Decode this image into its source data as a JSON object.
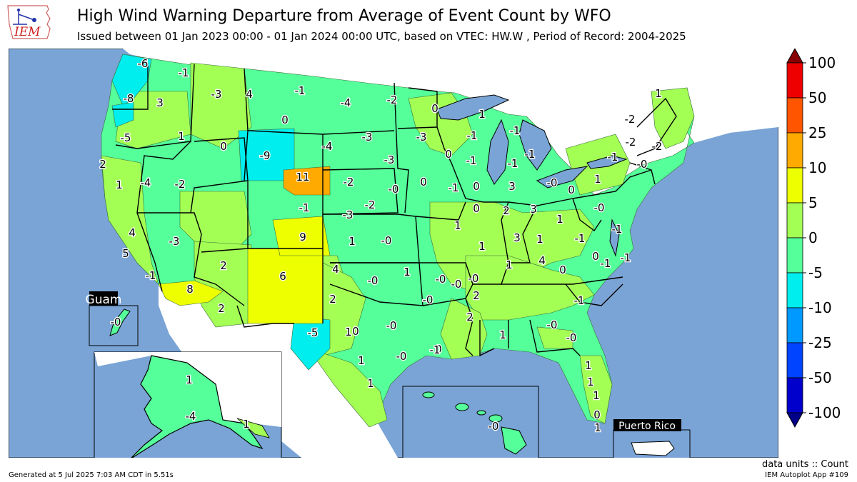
{
  "title": "High Wind Warning Departure from Average of Event Count by WFO",
  "subtitle": "Issued between 01 Jan 2023 00:00 - 01 Jan 2024 00:00 UTC, based on VTEC: HW.W  , Period of Record: 2004-2025",
  "logo_text": "IEM",
  "units": "data units :: Count",
  "generated": "Generated at 5 Jul 2025 7:03 AM CDT in 5.51s",
  "app": "IEM Autoplot App #109",
  "colors": {
    "ocean": "#7aa4d6",
    "missing": "#ffffff",
    "boundary": "#000000"
  },
  "legend": {
    "ticks": [
      "100",
      "50",
      "25",
      "10",
      "5",
      "0",
      "-5",
      "-10",
      "-25",
      "-50",
      "-100"
    ],
    "bins": [
      {
        "range": "50 to 100",
        "color": "#ee0000"
      },
      {
        "range": "25 to 50",
        "color": "#ff5500"
      },
      {
        "range": "10 to 25",
        "color": "#ffaa00"
      },
      {
        "range": "5 to 10",
        "color": "#eeff00"
      },
      {
        "range": "0 to 5",
        "color": "#a4ff55"
      },
      {
        "range": "-5 to 0",
        "color": "#55ff99"
      },
      {
        "range": "-10 to -5",
        "color": "#00eeee"
      },
      {
        "range": "-25 to -10",
        "color": "#0099ff"
      },
      {
        "range": "-50 to -25",
        "color": "#0044ff"
      },
      {
        "range": "-100 to -50",
        "color": "#0000cc"
      }
    ],
    "over_color": "#880000",
    "under_color": "#000088"
  },
  "insets": {
    "guam": "Guam",
    "puerto_rico": "Puerto Rico"
  },
  "wfo_values": [
    {
      "v": "-6"
    },
    {
      "v": "-1"
    },
    {
      "v": "-8"
    },
    {
      "v": "3"
    },
    {
      "v": "-3"
    },
    {
      "v": "4"
    },
    {
      "v": "-1"
    },
    {
      "v": "-4"
    },
    {
      "v": "-2"
    },
    {
      "v": "0"
    },
    {
      "v": "0"
    },
    {
      "v": "-5"
    },
    {
      "v": "1"
    },
    {
      "v": "0"
    },
    {
      "v": "-9"
    },
    {
      "v": "-4"
    },
    {
      "v": "-3"
    },
    {
      "v": "1"
    },
    {
      "v": "-1"
    },
    {
      "v": "-1"
    },
    {
      "v": "0"
    },
    {
      "v": "2"
    },
    {
      "v": "-4"
    },
    {
      "v": "-2"
    },
    {
      "v": "11"
    },
    {
      "v": "-3"
    },
    {
      "v": "-3"
    },
    {
      "v": "-1"
    },
    {
      "v": "1"
    },
    {
      "v": "-1"
    },
    {
      "v": "-1"
    },
    {
      "v": "-0"
    },
    {
      "v": "-2"
    },
    {
      "v": "-2"
    },
    {
      "v": "-1"
    },
    {
      "v": "-0"
    },
    {
      "v": "1"
    },
    {
      "v": "1"
    },
    {
      "v": "-2"
    },
    {
      "v": "-2"
    },
    {
      "v": "0"
    },
    {
      "v": "3"
    },
    {
      "v": "0"
    },
    {
      "v": "-1"
    },
    {
      "v": "-3"
    },
    {
      "v": "-2"
    },
    {
      "v": "-0"
    },
    {
      "v": "0"
    },
    {
      "v": "2"
    },
    {
      "v": "3"
    },
    {
      "v": "1"
    },
    {
      "v": "-0"
    },
    {
      "v": "4"
    },
    {
      "v": "-3"
    },
    {
      "v": "9"
    },
    {
      "v": "1"
    },
    {
      "v": "-0"
    },
    {
      "v": "-1"
    },
    {
      "v": "0"
    },
    {
      "v": "1"
    },
    {
      "v": "1"
    },
    {
      "v": "-1"
    },
    {
      "v": "1"
    },
    {
      "v": "-1"
    },
    {
      "v": "5"
    },
    {
      "v": "2"
    },
    {
      "v": "6"
    },
    {
      "v": "4"
    },
    {
      "v": "-0"
    },
    {
      "v": "1"
    },
    {
      "v": "-0"
    },
    {
      "v": "2"
    },
    {
      "v": "3"
    },
    {
      "v": "1"
    },
    {
      "v": "4"
    },
    {
      "v": "0"
    },
    {
      "v": "0"
    },
    {
      "v": "-1"
    },
    {
      "v": "-1"
    },
    {
      "v": "8"
    },
    {
      "v": "2"
    },
    {
      "v": "-0"
    },
    {
      "v": "-0"
    },
    {
      "v": "0"
    },
    {
      "v": "-0"
    },
    {
      "v": "-0"
    },
    {
      "v": "1"
    },
    {
      "v": "2"
    },
    {
      "v": "-1"
    },
    {
      "v": "-0"
    },
    {
      "v": "2"
    },
    {
      "v": "-1"
    },
    {
      "v": "-5"
    },
    {
      "v": "1"
    },
    {
      "v": "1"
    },
    {
      "v": "-0"
    },
    {
      "v": "1"
    },
    {
      "v": "0"
    },
    {
      "v": "1"
    },
    {
      "v": "-0"
    },
    {
      "v": "1"
    },
    {
      "v": "1"
    },
    {
      "v": "0"
    },
    {
      "v": "1"
    },
    {
      "v": "1"
    },
    {
      "v": "-0"
    },
    {
      "v": "-0"
    },
    {
      "v": "-4"
    },
    {
      "v": "1"
    },
    {
      "v": "-1"
    }
  ]
}
